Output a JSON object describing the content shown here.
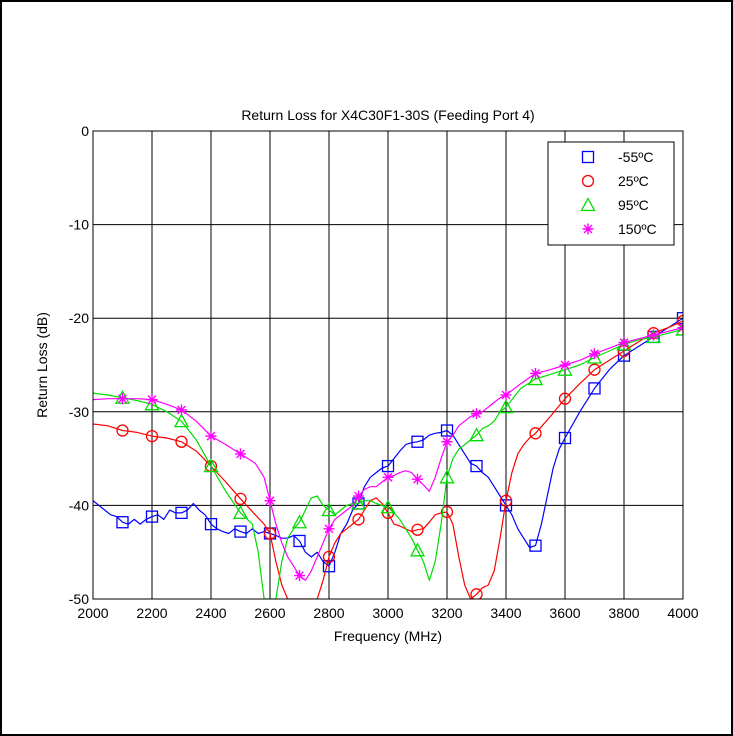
{
  "chart_data": {
    "type": "line",
    "title": "Return Loss for X4C30F1-30S (Feeding Port 4)",
    "xlabel": "Frequency (MHz)",
    "ylabel": "Return Loss (dB)",
    "xlim": [
      2000,
      4000
    ],
    "ylim": [
      -50,
      0
    ],
    "x_ticks": [
      2000,
      2200,
      2400,
      2600,
      2800,
      3000,
      3200,
      3400,
      3600,
      3800,
      4000
    ],
    "y_ticks": [
      0,
      -10,
      -20,
      -30,
      -40,
      -50
    ],
    "grid": true,
    "legend_position": "top-right",
    "series": [
      {
        "name": "-55ºC",
        "color": "#0000ff",
        "marker": "square",
        "x": [
          2000,
          2020,
          2040,
          2060,
          2080,
          2100,
          2120,
          2140,
          2160,
          2180,
          2200,
          2220,
          2240,
          2260,
          2280,
          2300,
          2320,
          2340,
          2360,
          2380,
          2400,
          2420,
          2440,
          2460,
          2480,
          2500,
          2520,
          2540,
          2560,
          2580,
          2600,
          2620,
          2640,
          2660,
          2680,
          2700,
          2720,
          2740,
          2760,
          2780,
          2800,
          2820,
          2840,
          2860,
          2880,
          2900,
          2920,
          2940,
          2960,
          2980,
          3000,
          3020,
          3040,
          3060,
          3080,
          3100,
          3120,
          3140,
          3160,
          3180,
          3200,
          3220,
          3240,
          3260,
          3280,
          3300,
          3320,
          3340,
          3360,
          3380,
          3400,
          3420,
          3440,
          3460,
          3480,
          3500,
          3520,
          3540,
          3560,
          3580,
          3600,
          3650,
          3700,
          3750,
          3800,
          3850,
          3900,
          3950,
          4000
        ],
        "y": [
          -39.5,
          -40,
          -40.5,
          -41,
          -41.2,
          -41.8,
          -42,
          -41.5,
          -42,
          -41.5,
          -41.2,
          -41,
          -41.5,
          -40.5,
          -40.8,
          -40.8,
          -40.5,
          -39.8,
          -40.5,
          -41,
          -42,
          -42.5,
          -42.8,
          -43,
          -42.5,
          -42.8,
          -43,
          -42.5,
          -43,
          -42.8,
          -43,
          -43.2,
          -43.5,
          -43.5,
          -43.2,
          -43.8,
          -45,
          -45.5,
          -45,
          -46,
          -46.5,
          -45,
          -43,
          -42,
          -40.5,
          -39.8,
          -38,
          -37,
          -36.5,
          -36,
          -35.8,
          -35,
          -34.2,
          -33.5,
          -33.3,
          -33.2,
          -33,
          -32.5,
          -32.3,
          -32.2,
          -32,
          -32.5,
          -33.5,
          -34.5,
          -35.5,
          -35.8,
          -36.5,
          -37,
          -38,
          -39,
          -40,
          -41,
          -42.5,
          -43.5,
          -44.5,
          -44.3,
          -42,
          -39,
          -36,
          -34,
          -32.8,
          -30,
          -27.5,
          -25.5,
          -24,
          -23,
          -22,
          -21,
          -20
        ]
      },
      {
        "name": "25ºC",
        "color": "#ff0000",
        "marker": "circle",
        "x": [
          2000,
          2050,
          2100,
          2150,
          2200,
          2250,
          2300,
          2350,
          2400,
          2450,
          2500,
          2550,
          2580,
          2600,
          2620,
          2640,
          2660,
          2680,
          2700,
          2720,
          2740,
          2760,
          2780,
          2800,
          2820,
          2840,
          2860,
          2880,
          2900,
          2920,
          2940,
          2960,
          2980,
          3000,
          3020,
          3040,
          3060,
          3080,
          3100,
          3120,
          3140,
          3160,
          3180,
          3200,
          3220,
          3240,
          3260,
          3280,
          3300,
          3320,
          3340,
          3360,
          3380,
          3400,
          3420,
          3440,
          3460,
          3480,
          3500,
          3550,
          3600,
          3650,
          3700,
          3750,
          3800,
          3850,
          3900,
          3950,
          4000
        ],
        "y": [
          -31.3,
          -31.5,
          -32,
          -32.2,
          -32.6,
          -32.8,
          -33.2,
          -34.2,
          -35.8,
          -37.5,
          -39.3,
          -41,
          -42,
          -43,
          -46,
          -48.5,
          -50,
          -50,
          -50,
          -50,
          -50,
          -50,
          -48,
          -45.5,
          -44,
          -43,
          -42.5,
          -42,
          -41.5,
          -40.5,
          -39.5,
          -39.2,
          -39.8,
          -40.8,
          -42,
          -42.2,
          -42.5,
          -42.8,
          -42.6,
          -42.5,
          -41.8,
          -41,
          -40.8,
          -40.7,
          -42,
          -45.5,
          -48.5,
          -50,
          -49.5,
          -48.8,
          -48.5,
          -47,
          -43.5,
          -39.5,
          -36.5,
          -34.5,
          -33.5,
          -32.8,
          -32.3,
          -30.5,
          -28.6,
          -27,
          -25.5,
          -24.5,
          -23.5,
          -22.5,
          -21.6,
          -21,
          -20.3
        ]
      },
      {
        "name": "95ºC",
        "color": "#00dd00",
        "marker": "triangle",
        "x": [
          2000,
          2050,
          2100,
          2150,
          2200,
          2250,
          2300,
          2350,
          2400,
          2450,
          2500,
          2540,
          2560,
          2580,
          2600,
          2620,
          2640,
          2660,
          2680,
          2700,
          2720,
          2740,
          2760,
          2780,
          2800,
          2820,
          2840,
          2860,
          2880,
          2900,
          2920,
          2940,
          2960,
          2980,
          3000,
          3020,
          3040,
          3060,
          3080,
          3100,
          3120,
          3140,
          3160,
          3180,
          3200,
          3220,
          3240,
          3260,
          3280,
          3300,
          3320,
          3340,
          3360,
          3380,
          3400,
          3450,
          3500,
          3550,
          3600,
          3650,
          3700,
          3750,
          3800,
          3850,
          3900,
          3950,
          4000
        ],
        "y": [
          -28,
          -28.2,
          -28.5,
          -28.8,
          -29.2,
          -30,
          -31,
          -33,
          -35.8,
          -38.5,
          -40.8,
          -42,
          -45,
          -50,
          -50,
          -50,
          -46,
          -43.5,
          -42.5,
          -41.8,
          -40.5,
          -39.2,
          -39,
          -40,
          -40.5,
          -41,
          -40.5,
          -40,
          -39.8,
          -39.8,
          -39.5,
          -39.5,
          -39.8,
          -40,
          -40.2,
          -40.8,
          -41.5,
          -42.5,
          -43.5,
          -44.8,
          -46,
          -48,
          -46,
          -42,
          -37,
          -35,
          -34,
          -33.5,
          -33,
          -32.5,
          -31.8,
          -31.5,
          -31,
          -30,
          -29.5,
          -27.5,
          -26.5,
          -26,
          -25.5,
          -25,
          -24.2,
          -23.5,
          -22.8,
          -22.3,
          -22,
          -21.6,
          -21.2
        ]
      },
      {
        "name": "150ºC",
        "color": "#ff00ff",
        "marker": "asterisk",
        "x": [
          2000,
          2050,
          2100,
          2150,
          2200,
          2250,
          2300,
          2350,
          2400,
          2450,
          2500,
          2550,
          2580,
          2600,
          2620,
          2640,
          2660,
          2680,
          2700,
          2720,
          2740,
          2760,
          2780,
          2800,
          2820,
          2840,
          2860,
          2880,
          2900,
          2920,
          2940,
          2960,
          2980,
          3000,
          3020,
          3040,
          3060,
          3080,
          3100,
          3120,
          3140,
          3160,
          3180,
          3200,
          3220,
          3240,
          3260,
          3280,
          3300,
          3320,
          3340,
          3360,
          3380,
          3400,
          3450,
          3500,
          3550,
          3600,
          3650,
          3700,
          3750,
          3800,
          3850,
          3900,
          3950,
          4000
        ],
        "y": [
          -28.7,
          -28.6,
          -28.6,
          -28.6,
          -28.7,
          -29.2,
          -29.8,
          -31,
          -32.6,
          -33.5,
          -34.5,
          -35.5,
          -37,
          -39.5,
          -42,
          -44,
          -45.5,
          -46.5,
          -47.5,
          -48,
          -47,
          -45.5,
          -44,
          -42.5,
          -41.5,
          -41,
          -40.5,
          -40,
          -39,
          -38.3,
          -38,
          -38,
          -37.5,
          -37,
          -36.8,
          -36.5,
          -36.3,
          -36.5,
          -37.2,
          -37.8,
          -38.5,
          -37,
          -35,
          -33.2,
          -32.5,
          -31.5,
          -31,
          -30.5,
          -30.2,
          -30,
          -29.5,
          -29,
          -28.5,
          -28.2,
          -27,
          -25.9,
          -25.5,
          -25,
          -24.5,
          -23.8,
          -23.2,
          -22.6,
          -22.2,
          -21.8,
          -21.4,
          -21
        ]
      }
    ]
  }
}
